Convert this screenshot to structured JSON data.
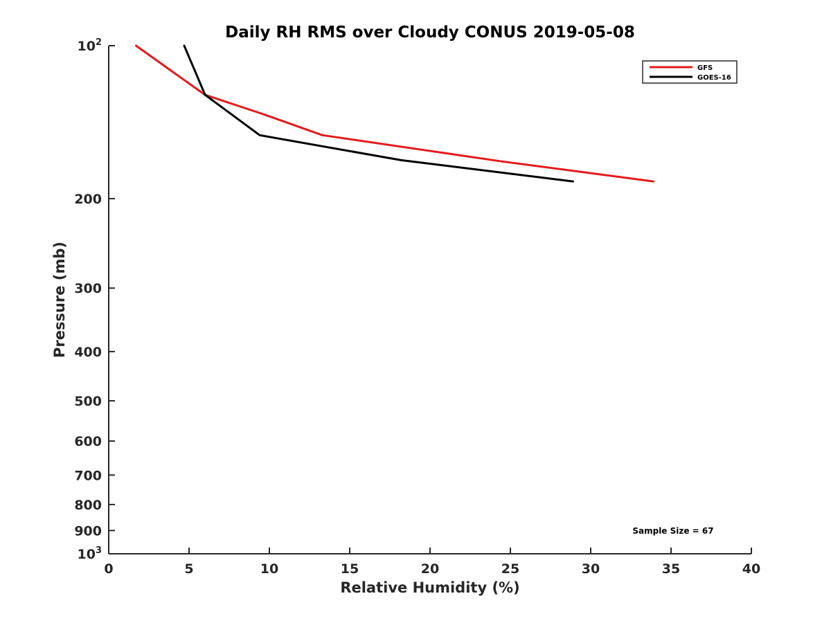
{
  "chart_data": {
    "type": "line",
    "title": "Daily RH RMS over Cloudy CONUS 2019-05-08",
    "xlabel": "Relative Humidity (%)",
    "ylabel": "Pressure (mb)",
    "xlim": [
      0,
      40
    ],
    "ylim": [
      100,
      1000
    ],
    "y_scale": "log",
    "y_reversed": true,
    "x_ticks": [
      0,
      5,
      10,
      15,
      20,
      25,
      30,
      35,
      40
    ],
    "x_tick_labels": [
      "0",
      "5",
      "10",
      "15",
      "20",
      "25",
      "30",
      "35",
      "40"
    ],
    "y_ticks": [
      100,
      200,
      300,
      400,
      500,
      600,
      700,
      800,
      900,
      1000
    ],
    "y_tick_labels": [
      {
        "base": "10",
        "sup": "2"
      },
      {
        "base": "200",
        "sup": ""
      },
      {
        "base": "300",
        "sup": ""
      },
      {
        "base": "400",
        "sup": ""
      },
      {
        "base": "500",
        "sup": ""
      },
      {
        "base": "600",
        "sup": ""
      },
      {
        "base": "700",
        "sup": ""
      },
      {
        "base": "800",
        "sup": ""
      },
      {
        "base": "900",
        "sup": ""
      },
      {
        "base": "10",
        "sup": "3"
      }
    ],
    "grid": false,
    "legend_position": "top-right",
    "series": [
      {
        "name": "GFS",
        "color": "#e41a1c",
        "points": [
          [
            1.7,
            100
          ],
          [
            6.0,
            125
          ],
          [
            9.5,
            136
          ],
          [
            13.3,
            150
          ],
          [
            24.5,
            169
          ],
          [
            33.9,
            185
          ]
        ]
      },
      {
        "name": "GOES-16",
        "color": "#000000",
        "points": [
          [
            4.7,
            100
          ],
          [
            6.0,
            125
          ],
          [
            9.4,
            150
          ],
          [
            18.2,
            168
          ],
          [
            28.9,
            185
          ]
        ]
      }
    ],
    "annotations": [
      {
        "text": "Sample Size = 67",
        "position": "bottom-right"
      }
    ]
  }
}
